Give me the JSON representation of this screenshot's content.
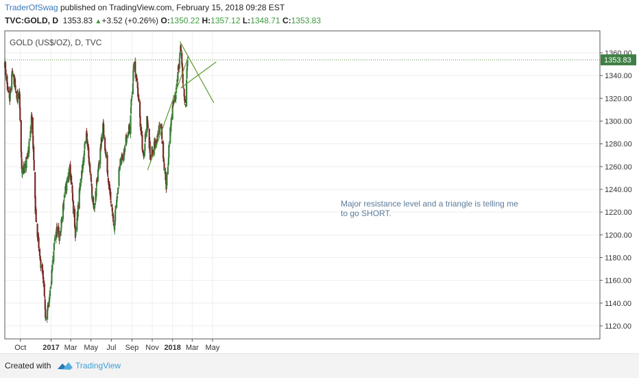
{
  "header": {
    "author": "TraderOfSwag",
    "published_text": "published on TradingView.com, February 15, 2018 09:28 EST",
    "symbol": "TVC:GOLD, D",
    "last": "1353.83",
    "change": "+3.52 (+0.26%)",
    "o_label": "O:",
    "o_value": "1350.22",
    "h_label": "H:",
    "h_value": "1357.12",
    "l_label": "L:",
    "l_value": "1348.71",
    "c_label": "C:",
    "c_value": "1353.83"
  },
  "footer": {
    "created_with": "Created with",
    "brand": "TradingView"
  },
  "colors": {
    "up": "#3a7f3a",
    "down": "#7a2a26",
    "trendline": "#5c9a2e",
    "resistance": "#4f8a3a",
    "grid": "#eeeeee",
    "price_tag": "#3f7f45"
  },
  "chart_data": {
    "type": "candlestick",
    "title": "GOLD (US$/OZ), D, TVC",
    "x_tick_labels": [
      "Oct",
      "2017",
      "Mar",
      "May",
      "Jul",
      "Sep",
      "Nov",
      "2018",
      "Mar",
      "May"
    ],
    "y_tick_labels": [
      "1120.00",
      "1140.00",
      "1160.00",
      "1180.00",
      "1200.00",
      "1220.00",
      "1240.00",
      "1260.00",
      "1280.00",
      "1300.00",
      "1320.00",
      "1340.00",
      "1360.00"
    ],
    "ylim": [
      1110,
      1368
    ],
    "grid": true,
    "last_price_label": "1353.83",
    "resistance_level": 1353.83,
    "annotation": [
      "Major resistance level and a triangle is telling me",
      "to go SHORT."
    ],
    "path": [
      [
        "2016-08-15",
        1352
      ],
      [
        "2016-08-28",
        1315
      ],
      [
        "2016-09-08",
        1345
      ],
      [
        "2016-09-20",
        1318
      ],
      [
        "2016-09-27",
        1328
      ],
      [
        "2016-10-05",
        1255
      ],
      [
        "2016-10-18",
        1262
      ],
      [
        "2016-10-30",
        1285
      ],
      [
        "2016-11-04",
        1303
      ],
      [
        "2016-11-09",
        1275
      ],
      [
        "2016-11-15",
        1220
      ],
      [
        "2016-11-28",
        1180
      ],
      [
        "2016-12-10",
        1160
      ],
      [
        "2016-12-15",
        1128
      ],
      [
        "2016-12-25",
        1135
      ],
      [
        "2017-01-15",
        1205
      ],
      [
        "2017-01-28",
        1198
      ],
      [
        "2017-02-10",
        1235
      ],
      [
        "2017-02-27",
        1258
      ],
      [
        "2017-03-15",
        1200
      ],
      [
        "2017-04-01",
        1250
      ],
      [
        "2017-04-18",
        1290
      ],
      [
        "2017-05-09",
        1220
      ],
      [
        "2017-05-25",
        1262
      ],
      [
        "2017-06-06",
        1295
      ],
      [
        "2017-06-20",
        1255
      ],
      [
        "2017-07-10",
        1208
      ],
      [
        "2017-07-25",
        1258
      ],
      [
        "2017-08-10",
        1278
      ],
      [
        "2017-08-25",
        1295
      ],
      [
        "2017-09-08",
        1353
      ],
      [
        "2017-09-20",
        1320
      ],
      [
        "2017-10-06",
        1265
      ],
      [
        "2017-10-16",
        1305
      ],
      [
        "2017-10-26",
        1270
      ],
      [
        "2017-11-08",
        1278
      ],
      [
        "2017-11-27",
        1298
      ],
      [
        "2017-12-12",
        1240
      ],
      [
        "2017-12-29",
        1305
      ],
      [
        "2018-01-10",
        1325
      ],
      [
        "2018-01-25",
        1362
      ],
      [
        "2018-02-08",
        1312
      ],
      [
        "2018-02-15",
        1354
      ]
    ],
    "trend_lines": [
      {
        "from": [
          "2017-10-18",
          1257
        ],
        "to": [
          "2018-02-18",
          1357
        ]
      },
      {
        "from": [
          "2018-01-23",
          1370
        ],
        "to": [
          "2018-05-05",
          1316
        ]
      },
      {
        "from": [
          "2018-01-25",
          1329
        ],
        "to": [
          "2018-05-12",
          1352
        ]
      }
    ]
  }
}
